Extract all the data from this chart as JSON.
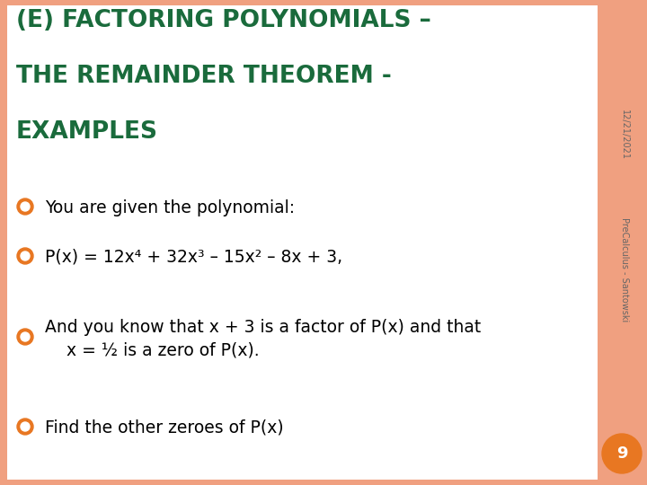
{
  "title_line1": "(E) FACTORING POLYNOMIALS –",
  "title_line2": "THE REMAINDER THEOREM -",
  "title_line3": "EXAMPLES",
  "title_color": "#1a6b3c",
  "background_color": "#ffffff",
  "border_color": "#f0a080",
  "bullet_color": "#e87722",
  "bullet_items": [
    "You are given the polynomial:",
    "P(x) = 12x⁴ + 32x³ – 15x² – 8x + 3,",
    "And you know that x + 3 is a factor of P(x) and that\n    x = ½ is a zero of P(x).",
    "Find the other zeroes of P(x)"
  ],
  "side_text_date": "12/21/2021",
  "side_text_name": "PreCalculus - Santowski",
  "side_text_color": "#666666",
  "page_number": "9",
  "page_number_color": "#e87722",
  "page_number_text_color": "#ffffff",
  "title_fontsize": 19,
  "body_fontsize": 13.5,
  "side_fontsize": 7
}
